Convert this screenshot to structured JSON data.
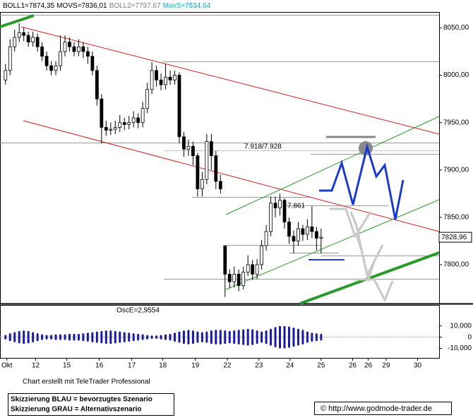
{
  "chart_data": {
    "type": "candlestick",
    "indicators": [
      {
        "text": "BOLL1=7874,35",
        "color": "#000000"
      },
      {
        "text": "MOVS=7836,01",
        "color": "#000000"
      },
      {
        "text": "BOLL2=7797,67",
        "color": "#808080"
      },
      {
        "text": "MovS=7834,64",
        "color": "#00b0c8"
      }
    ],
    "open": [
      7995,
      8005,
      8030,
      8040,
      8045,
      8042,
      8035,
      8040,
      8030,
      8020,
      8010,
      8005,
      8010,
      8025,
      8035,
      8030,
      8025,
      8030,
      8025,
      8020,
      8005,
      7975,
      7945,
      7942,
      7943,
      7945,
      7950,
      7948,
      7950,
      7955,
      7950,
      7965,
      7985,
      8005,
      7995,
      7990,
      7998,
      7995,
      8000,
      7935,
      7922,
      7925,
      7915,
      7880,
      7890,
      7930,
      7915,
      7888,
      7820,
      7790,
      7782,
      7790,
      7778,
      7792,
      7800,
      7790,
      7800,
      7820,
      7835,
      7865,
      7860,
      7868,
      7845,
      7830,
      7825,
      7838,
      7832,
      7840,
      7835,
      7828
    ],
    "high": [
      8012,
      8038,
      8048,
      8055,
      8050,
      8046,
      8046,
      8044,
      8035,
      8025,
      8015,
      8015,
      8042,
      8042,
      8040,
      8035,
      8038,
      8035,
      8030,
      8025,
      8010,
      7980,
      7952,
      7950,
      7952,
      7958,
      7955,
      7957,
      7962,
      7960,
      7972,
      7992,
      8014,
      8010,
      8002,
      8012,
      8005,
      8005,
      8003,
      7940,
      7932,
      7930,
      7918,
      7898,
      7938,
      7938,
      7920,
      7895,
      7820,
      7795,
      7798,
      7795,
      7798,
      7810,
      7805,
      7806,
      7826,
      7842,
      7872,
      7872,
      7875,
      7870,
      7850,
      7836,
      7845,
      7842,
      7848,
      7862,
      7840,
      7838
    ],
    "low": [
      7990,
      8000,
      8025,
      8035,
      8036,
      8030,
      8030,
      8025,
      8015,
      8005,
      8000,
      8000,
      8005,
      8020,
      8025,
      8020,
      8020,
      8018,
      8012,
      8000,
      7968,
      7928,
      7936,
      7937,
      7938,
      7940,
      7942,
      7943,
      7945,
      7944,
      7945,
      7960,
      7980,
      7988,
      7984,
      7985,
      7990,
      7990,
      7928,
      7914,
      7915,
      7905,
      7872,
      7872,
      7885,
      7900,
      7880,
      7875,
      7766,
      7775,
      7776,
      7772,
      7774,
      7788,
      7784,
      7785,
      7795,
      7815,
      7830,
      7850,
      7852,
      7838,
      7822,
      7812,
      7820,
      7825,
      7826,
      7828,
      7815,
      7812
    ],
    "close": [
      8005,
      8030,
      8040,
      8045,
      8042,
      8035,
      8040,
      8030,
      8020,
      8010,
      8005,
      8010,
      8025,
      8035,
      8030,
      8025,
      8030,
      8025,
      8020,
      8005,
      7975,
      7945,
      7942,
      7943,
      7945,
      7950,
      7948,
      7950,
      7955,
      7950,
      7965,
      7985,
      8005,
      7995,
      7990,
      7998,
      7995,
      8000,
      7935,
      7922,
      7925,
      7915,
      7880,
      7890,
      7930,
      7915,
      7888,
      7880,
      7790,
      7782,
      7790,
      7778,
      7792,
      7800,
      7790,
      7800,
      7820,
      7835,
      7865,
      7860,
      7868,
      7845,
      7830,
      7825,
      7838,
      7832,
      7840,
      7835,
      7828,
      7829
    ],
    "color": "#000000",
    "ylim": [
      7759,
      8066
    ],
    "yticks": [
      {
        "value": 8050,
        "label": "8050,00"
      },
      {
        "value": 8000,
        "label": "8000,00"
      },
      {
        "value": 7950,
        "label": "7950,00"
      },
      {
        "value": 7900,
        "label": "7900,00"
      },
      {
        "value": 7850,
        "label": "7850,00"
      },
      {
        "value": 7800,
        "label": "7800,00"
      }
    ],
    "xlim": [
      -1.2,
      94.8
    ],
    "xticks": [
      {
        "value": 0.3,
        "label": "Okt"
      },
      {
        "value": 6.6,
        "label": "12"
      },
      {
        "value": 13.4,
        "label": "15"
      },
      {
        "value": 20.5,
        "label": "16"
      },
      {
        "value": 27.6,
        "label": "17"
      },
      {
        "value": 34.4,
        "label": "18"
      },
      {
        "value": 41.5,
        "label": "19"
      },
      {
        "value": 48.5,
        "label": "22"
      },
      {
        "value": 55.4,
        "label": "23"
      },
      {
        "value": 62.2,
        "label": "24"
      },
      {
        "value": 69,
        "label": "25"
      },
      {
        "value": 75.9,
        "label": "26"
      },
      {
        "value": 79.3,
        "label": "26"
      },
      {
        "value": 83.2,
        "label": "29"
      },
      {
        "value": 90.1,
        "label": "30"
      }
    ],
    "last_price": 7828.96,
    "last_price_label": "7828,96",
    "annotations": [
      "7.918/7.928",
      "7.861"
    ],
    "oscillator": {
      "title": "OscE=2,9554",
      "color": "#1a1aa0",
      "values": [
        2000,
        3500,
        4500,
        5500,
        6000,
        5500,
        4500,
        3500,
        2500,
        2000,
        2000,
        2500,
        2500,
        2500,
        3000,
        3000,
        3000,
        3500,
        4000,
        4500,
        5000,
        5500,
        6000,
        6000,
        5500,
        5000,
        4500,
        4000,
        3500,
        3000,
        2500,
        2000,
        1500,
        1500,
        2000,
        2500,
        3000,
        4000,
        5000,
        6000,
        6500,
        6000,
        5000,
        4500,
        5000,
        6000,
        6500,
        6500,
        6000,
        5500,
        6000,
        6500,
        7000,
        7500,
        7000,
        6000,
        5000,
        6000,
        7500,
        9000,
        10000,
        10000,
        9500,
        8500,
        7500,
        6500,
        5000,
        4000,
        3500,
        3000
      ],
      "ylim": [
        -18400,
        28000
      ],
      "yticks": [
        {
          "value": 10000,
          "label": "10,000"
        },
        0,
        {
          "value": -10000,
          "label": "-10,000"
        }
      ]
    },
    "credit": "Chart erstellt mit TeleTrader Professional",
    "legend_lines": [
      "Skizzierung BLAU = bevorzugtes Szenario",
      "Skizzierung GRAU = Alternativszenario"
    ],
    "source": "© http://www.godmode-trader.de"
  }
}
